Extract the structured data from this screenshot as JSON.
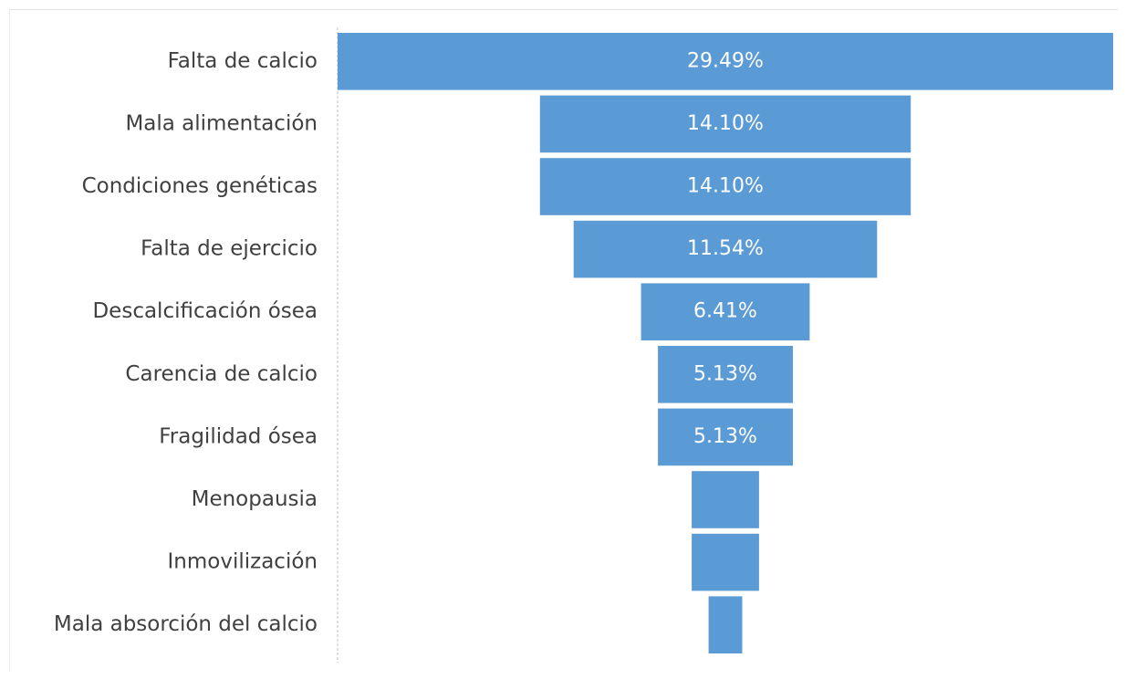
{
  "chart_data": {
    "type": "bar",
    "orientation": "horizontal-funnel",
    "title": "",
    "xlabel": "",
    "ylabel": "",
    "categories": [
      "Falta de calcio",
      "Mala alimentación",
      "Condiciones genéticas",
      "Falta de ejercicio",
      "Descalcificación ósea",
      "Carencia de calcio",
      "Fragilidad ósea",
      "Menopausia",
      "Inmovilización",
      "Mala absorción del calcio"
    ],
    "values": [
      29.49,
      14.1,
      14.1,
      11.54,
      6.41,
      5.13,
      5.13,
      2.56,
      2.56,
      1.28
    ],
    "data_labels": [
      "29.49%",
      "14.10%",
      "14.10%",
      "11.54%",
      "6.41%",
      "5.13%",
      "5.13%",
      "",
      "",
      ""
    ],
    "unit": "%",
    "bar_color": "#5b9bd5",
    "label_color": "#404040",
    "data_label_color": "#ffffff",
    "grid": false,
    "legend": "none"
  }
}
